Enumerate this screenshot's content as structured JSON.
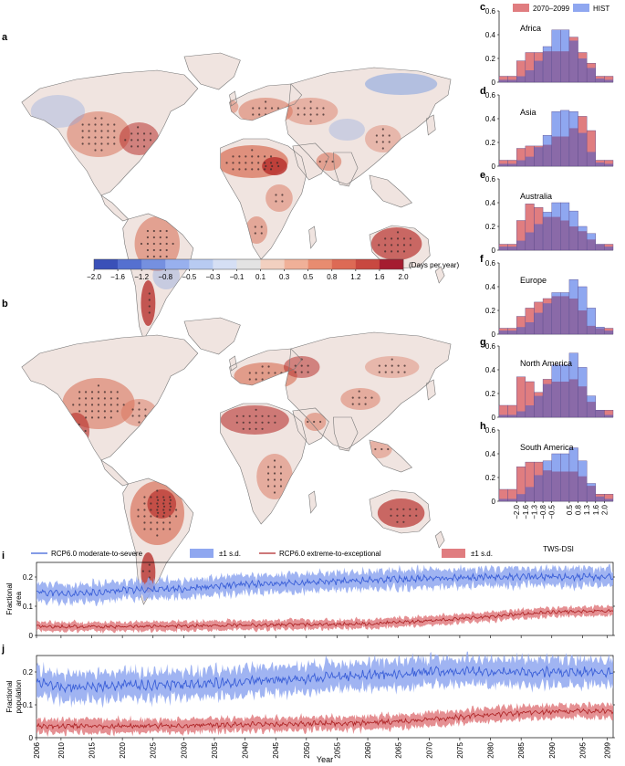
{
  "panel_letters": {
    "a": "a",
    "b": "b",
    "c": "c",
    "d": "d",
    "e": "e",
    "f": "f",
    "g": "g",
    "h": "h",
    "i": "i",
    "j": "j"
  },
  "colorbar": {
    "ticks": [
      "−2.0",
      "−1.6",
      "−1.2",
      "−0.8",
      "−0.5",
      "−0.3",
      "−0.1",
      "0.1",
      "0.3",
      "0.5",
      "0.8",
      "1.2",
      "1.6",
      "2.0"
    ],
    "unit": "(Days per year)",
    "colors": [
      "#3a50b8",
      "#5570d0",
      "#7590e0",
      "#98b0ee",
      "#b8cbf2",
      "#d5dff4",
      "#e3e3e3",
      "#f2d0c0",
      "#f0b098",
      "#e88c70",
      "#dd6a55",
      "#c84840",
      "#a51c30"
    ]
  },
  "map_colors": {
    "ocean": "#ffffff",
    "land_base": "#f0e4e0",
    "land_edge": "#777777",
    "warm": "#d9745c",
    "hot": "#b8322e",
    "cool": "#8aa6e0"
  },
  "chart_data": [
    {
      "type": "bar",
      "panel": "c-h",
      "title": "",
      "xlabel": "TWS-DSI",
      "x_ticks": [
        "−2.0",
        "−1.6",
        "−1.3",
        "−0.8",
        "−0.5",
        "0.5",
        "0.8",
        "1.3",
        "1.6",
        "2.0"
      ],
      "ylim": [
        0,
        0.6
      ],
      "y_ticks": [
        "0",
        "0.2",
        "0.4",
        "0.6"
      ],
      "legend": [
        "2070–2099",
        "HIST"
      ],
      "colors": {
        "future": "#e07d80",
        "hist": "#8fa7f0",
        "overlap": "#8a6aa8"
      },
      "regions": [
        {
          "name": "Africa",
          "future": [
            0.05,
            0.05,
            0.18,
            0.25,
            0.25,
            0.26,
            0.26,
            0.26,
            0.38,
            0.25,
            0.16,
            0.05,
            0.05
          ],
          "hist": [
            0.02,
            0.02,
            0.05,
            0.1,
            0.18,
            0.3,
            0.44,
            0.44,
            0.35,
            0.2,
            0.12,
            0.03,
            0.02
          ]
        },
        {
          "name": "Asia",
          "future": [
            0.05,
            0.05,
            0.15,
            0.17,
            0.17,
            0.18,
            0.25,
            0.25,
            0.32,
            0.42,
            0.3,
            0.05,
            0.05
          ],
          "hist": [
            0.02,
            0.02,
            0.05,
            0.08,
            0.16,
            0.26,
            0.46,
            0.47,
            0.46,
            0.28,
            0.12,
            0.03,
            0.02
          ]
        },
        {
          "name": "Australia",
          "future": [
            0.05,
            0.05,
            0.25,
            0.39,
            0.36,
            0.28,
            0.28,
            0.25,
            0.2,
            0.16,
            0.09,
            0.05,
            0.05
          ],
          "hist": [
            0.03,
            0.03,
            0.08,
            0.15,
            0.22,
            0.32,
            0.4,
            0.4,
            0.33,
            0.2,
            0.14,
            0.05,
            0.03
          ]
        },
        {
          "name": "Europe",
          "future": [
            0.05,
            0.05,
            0.15,
            0.22,
            0.27,
            0.3,
            0.32,
            0.32,
            0.3,
            0.2,
            0.07,
            0.05,
            0.05
          ],
          "hist": [
            0.03,
            0.03,
            0.06,
            0.1,
            0.18,
            0.26,
            0.35,
            0.35,
            0.46,
            0.4,
            0.22,
            0.06,
            0.03
          ]
        },
        {
          "name": "North America",
          "future": [
            0.1,
            0.1,
            0.34,
            0.3,
            0.21,
            0.32,
            0.3,
            0.3,
            0.32,
            0.26,
            0.13,
            0.06,
            0.06
          ],
          "hist": [
            0.02,
            0.02,
            0.05,
            0.1,
            0.18,
            0.28,
            0.44,
            0.44,
            0.54,
            0.42,
            0.18,
            0.06,
            0.02
          ]
        },
        {
          "name": "South America",
          "future": [
            0.1,
            0.1,
            0.29,
            0.33,
            0.33,
            0.26,
            0.25,
            0.25,
            0.25,
            0.21,
            0.13,
            0.06,
            0.06
          ],
          "hist": [
            0.02,
            0.02,
            0.06,
            0.12,
            0.22,
            0.34,
            0.4,
            0.4,
            0.45,
            0.34,
            0.15,
            0.04,
            0.02
          ]
        }
      ]
    },
    {
      "type": "line",
      "panels": [
        "i",
        "j"
      ],
      "xlabel": "Year",
      "xlim": [
        2006,
        2100
      ],
      "x_ticks": [
        "2006",
        "2010",
        "2015",
        "2020",
        "2025",
        "2030",
        "2035",
        "2040",
        "2045",
        "2050",
        "2055",
        "2060",
        "2065",
        "2070",
        "2075",
        "2080",
        "2085",
        "2090",
        "2095",
        "2099"
      ],
      "ylim": [
        0,
        0.25
      ],
      "y_ticks": [
        "0",
        "0.1",
        "0.2"
      ],
      "legend": [
        "RCP6.0 moderate-to-severe",
        "±1 s.d.",
        "RCP6.0 extreme-to-exceptional",
        "±1 s.d."
      ],
      "colors": {
        "blue_line": "#3a5fd8",
        "blue_band": "#8fa7f0",
        "red_line": "#b0282a",
        "red_band": "#e07d80"
      },
      "series_i": {
        "ylabel": [
          "Fractional",
          "area"
        ],
        "moderate_anchor_years": [
          2006,
          2012,
          2020,
          2030,
          2040,
          2050,
          2060,
          2070,
          2080,
          2090,
          2100
        ],
        "moderate_anchor_values": [
          0.15,
          0.14,
          0.155,
          0.16,
          0.175,
          0.18,
          0.19,
          0.195,
          0.2,
          0.2,
          0.2
        ],
        "moderate_sd": 0.03,
        "extreme_anchor_years": [
          2006,
          2020,
          2040,
          2060,
          2070,
          2080,
          2090,
          2100
        ],
        "extreme_anchor_values": [
          0.03,
          0.03,
          0.035,
          0.04,
          0.05,
          0.065,
          0.08,
          0.085
        ],
        "extreme_sd": 0.015
      },
      "series_j": {
        "ylabel": [
          "Fractional",
          "population"
        ],
        "moderate_anchor_years": [
          2006,
          2012,
          2020,
          2030,
          2040,
          2050,
          2060,
          2070,
          2080,
          2090,
          2100
        ],
        "moderate_anchor_values": [
          0.17,
          0.15,
          0.16,
          0.16,
          0.17,
          0.18,
          0.19,
          0.2,
          0.2,
          0.2,
          0.2
        ],
        "moderate_sd": 0.04,
        "extreme_anchor_years": [
          2006,
          2020,
          2040,
          2060,
          2070,
          2080,
          2090,
          2100
        ],
        "extreme_anchor_values": [
          0.035,
          0.035,
          0.04,
          0.045,
          0.055,
          0.07,
          0.08,
          0.08
        ],
        "extreme_sd": 0.02
      }
    }
  ]
}
